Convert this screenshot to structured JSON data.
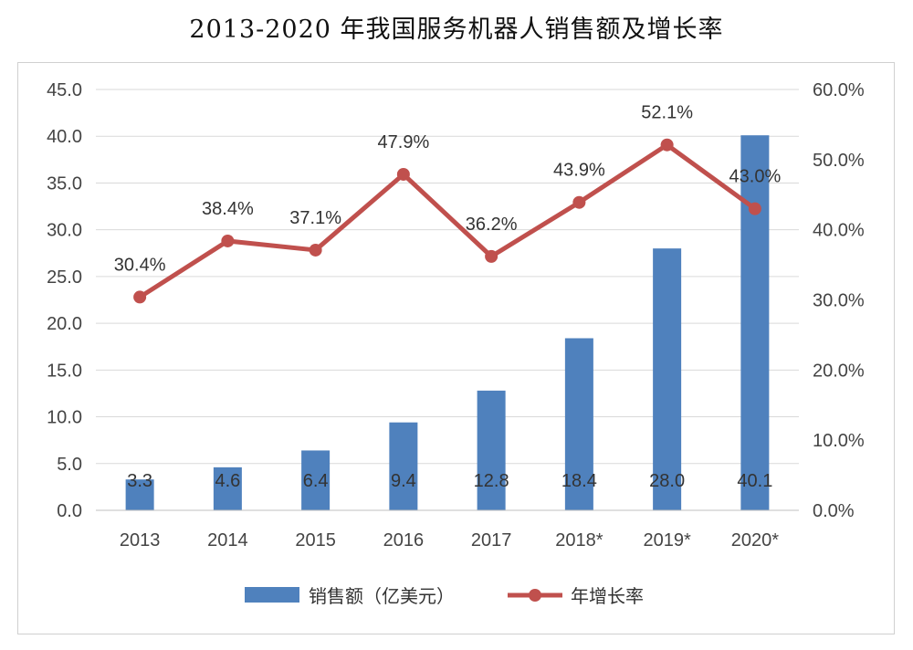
{
  "title": "2013-2020 年我国服务机器人销售额及增长率",
  "chart_data": {
    "type": "bar",
    "title": "2013-2020 年我国服务机器人销售额及增长率",
    "categories": [
      "2013",
      "2014",
      "2015",
      "2016",
      "2017",
      "2018*",
      "2019*",
      "2020*"
    ],
    "series": [
      {
        "name": "销售额（亿美元）",
        "type": "bar",
        "axis": "left",
        "color": "#4f81bd",
        "values": [
          3.3,
          4.6,
          6.4,
          9.4,
          12.8,
          18.4,
          28.0,
          40.1
        ],
        "labels": [
          "3.3",
          "4.6",
          "6.4",
          "9.4",
          "12.8",
          "18.4",
          "28.0",
          "40.1"
        ]
      },
      {
        "name": "年增长率",
        "type": "line",
        "axis": "right",
        "color": "#c0504d",
        "values": [
          30.4,
          38.4,
          37.1,
          47.9,
          36.2,
          43.9,
          52.1,
          43.0
        ],
        "labels": [
          "30.4%",
          "38.4%",
          "37.1%",
          "47.9%",
          "36.2%",
          "43.9%",
          "52.1%",
          "43.0%"
        ]
      }
    ],
    "y_left": {
      "min": 0,
      "max": 45,
      "step": 5,
      "ticks": [
        "0.0",
        "5.0",
        "10.0",
        "15.0",
        "20.0",
        "25.0",
        "30.0",
        "35.0",
        "40.0",
        "45.0"
      ]
    },
    "y_right": {
      "min": 0,
      "max": 60,
      "step": 10,
      "ticks": [
        "0.0%",
        "10.0%",
        "20.0%",
        "30.0%",
        "40.0%",
        "50.0%",
        "60.0%"
      ]
    },
    "grid": true,
    "legend_position": "bottom"
  }
}
